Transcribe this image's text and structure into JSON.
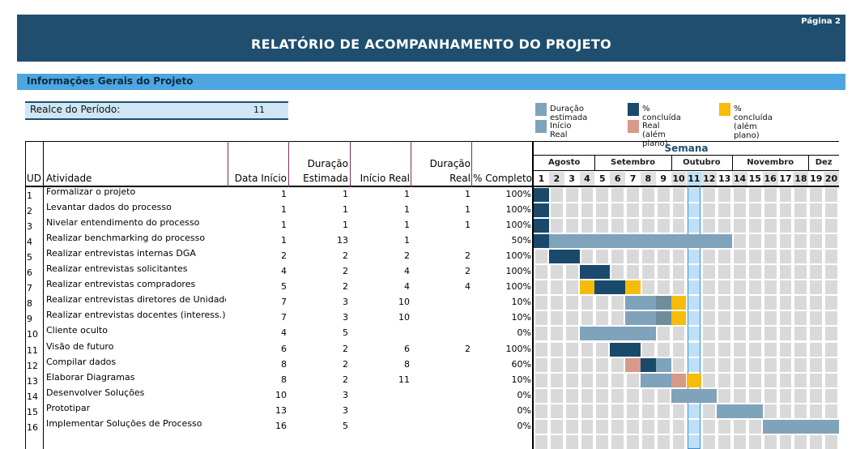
{
  "header": {
    "page_label": "Página 2",
    "title": "RELATÓRIO DE ACOMPANHAMENTO DO PROJETO"
  },
  "info": {
    "title": "Informações Gerais do Projeto"
  },
  "period": {
    "label": "Realce do Período:",
    "value": "11"
  },
  "legend": [
    {
      "name": "estimated",
      "label": "Duração estimada",
      "color": "#7fa3ba"
    },
    {
      "name": "complete",
      "label": "% concluída",
      "color": "#1a4a6b"
    },
    {
      "name": "complete-beyond",
      "label": "% concluída (além plano)",
      "color": "#f5bc0a"
    },
    {
      "name": "actual-start",
      "label": "Início Real",
      "color": "#7fa3ba"
    },
    {
      "name": "actual-beyond",
      "label": "Real (além plano)",
      "color": "#d6998a"
    }
  ],
  "columns": {
    "ud": "UD",
    "activity": "Atividade",
    "start": "Data Início",
    "duration_est_1": "Duração",
    "duration_est_2": "Estimada",
    "real_start": "Início Real",
    "duration_real_1": "Duração",
    "duration_real_2": "Real",
    "percent": "% Completo",
    "week_group": "Semana"
  },
  "months": [
    {
      "label": "Agosto",
      "from": 1,
      "to": 4
    },
    {
      "label": "Setembro",
      "from": 5,
      "to": 9
    },
    {
      "label": "Outubro",
      "from": 10,
      "to": 13
    },
    {
      "label": "Novembro",
      "from": 14,
      "to": 18
    },
    {
      "label": "Dez",
      "from": 19,
      "to": 20
    }
  ],
  "weeks": [
    "1",
    "2",
    "3",
    "4",
    "5",
    "6",
    "7",
    "8",
    "9",
    "10",
    "11",
    "12",
    "13",
    "14",
    "15",
    "16",
    "17",
    "18",
    "19",
    "20"
  ],
  "highlight_week": 11,
  "colors": {
    "est": "#7fa3ba",
    "done": "#1a4a6b",
    "beyond": "#f5bc0a",
    "real_beyond": "#d6998a",
    "cell": "#d9d9d9",
    "highlight": "#bde0f6"
  },
  "rows": [
    {
      "ud": "1",
      "activity": "Formalizar o projeto",
      "start": "1",
      "dur_est": "1",
      "real_start": "1",
      "dur_real": "1",
      "percent": "100%",
      "bars": [
        {
          "from": 1,
          "to": 1,
          "kind": "done"
        }
      ]
    },
    {
      "ud": "2",
      "activity": "Levantar dados do processo",
      "start": "1",
      "dur_est": "1",
      "real_start": "1",
      "dur_real": "1",
      "percent": "100%",
      "bars": [
        {
          "from": 1,
          "to": 1,
          "kind": "done"
        }
      ]
    },
    {
      "ud": "3",
      "activity": "Nivelar entendimento do processo",
      "start": "1",
      "dur_est": "1",
      "real_start": "1",
      "dur_real": "1",
      "percent": "100%",
      "bars": [
        {
          "from": 1,
          "to": 1,
          "kind": "done"
        }
      ]
    },
    {
      "ud": "4",
      "activity": "Realizar benchmarking do processo",
      "start": "1",
      "dur_est": "13",
      "real_start": "1",
      "dur_real": "",
      "percent": "50%",
      "bars": [
        {
          "from": 1,
          "to": 13,
          "kind": "est"
        },
        {
          "from": 1,
          "to": 1,
          "kind": "done"
        }
      ]
    },
    {
      "ud": "5",
      "activity": "Realizar entrevistas internas DGA",
      "start": "2",
      "dur_est": "2",
      "real_start": "2",
      "dur_real": "2",
      "percent": "100%",
      "bars": [
        {
          "from": 2,
          "to": 3,
          "kind": "done"
        }
      ]
    },
    {
      "ud": "6",
      "activity": "Realizar entrevistas solicitantes",
      "start": "4",
      "dur_est": "2",
      "real_start": "4",
      "dur_real": "2",
      "percent": "100%",
      "bars": [
        {
          "from": 4,
          "to": 5,
          "kind": "done"
        }
      ]
    },
    {
      "ud": "7",
      "activity": "Realizar entrevistas compradores",
      "start": "5",
      "dur_est": "2",
      "real_start": "4",
      "dur_real": "4",
      "percent": "100%",
      "bars": [
        {
          "from": 4,
          "to": 4,
          "kind": "beyond"
        },
        {
          "from": 5,
          "to": 6,
          "kind": "done"
        },
        {
          "from": 7,
          "to": 7,
          "kind": "beyond"
        }
      ]
    },
    {
      "ud": "8",
      "activity": "Realizar entrevistas diretores de Unidade",
      "start": "7",
      "dur_est": "3",
      "real_start": "10",
      "dur_real": "",
      "percent": "10%",
      "bars": [
        {
          "from": 7,
          "to": 9,
          "kind": "est"
        },
        {
          "from": 9,
          "to": 9,
          "kind": "mid"
        },
        {
          "from": 10,
          "to": 10,
          "kind": "beyond"
        }
      ]
    },
    {
      "ud": "9",
      "activity": "Realizar entrevistas docentes (interess.)",
      "start": "7",
      "dur_est": "3",
      "real_start": "10",
      "dur_real": "",
      "percent": "10%",
      "bars": [
        {
          "from": 7,
          "to": 9,
          "kind": "est"
        },
        {
          "from": 9,
          "to": 9,
          "kind": "mid"
        },
        {
          "from": 10,
          "to": 10,
          "kind": "beyond"
        }
      ]
    },
    {
      "ud": "10",
      "activity": "Cliente oculto",
      "start": "4",
      "dur_est": "5",
      "real_start": "",
      "dur_real": "",
      "percent": "0%",
      "bars": [
        {
          "from": 4,
          "to": 8,
          "kind": "est"
        }
      ]
    },
    {
      "ud": "11",
      "activity": "Visão de futuro",
      "start": "6",
      "dur_est": "2",
      "real_start": "6",
      "dur_real": "2",
      "percent": "100%",
      "bars": [
        {
          "from": 6,
          "to": 7,
          "kind": "done"
        }
      ]
    },
    {
      "ud": "12",
      "activity": "Compilar dados",
      "start": "8",
      "dur_est": "2",
      "real_start": "8",
      "dur_real": "",
      "percent": "60%",
      "bars": [
        {
          "from": 7,
          "to": 7,
          "kind": "real_beyond"
        },
        {
          "from": 8,
          "to": 8,
          "kind": "done"
        },
        {
          "from": 9,
          "to": 9,
          "kind": "est"
        }
      ]
    },
    {
      "ud": "13",
      "activity": "Elaborar Diagramas",
      "start": "8",
      "dur_est": "2",
      "real_start": "11",
      "dur_real": "",
      "percent": "10%",
      "bars": [
        {
          "from": 8,
          "to": 9,
          "kind": "est"
        },
        {
          "from": 10,
          "to": 10,
          "kind": "real_beyond"
        },
        {
          "from": 11,
          "to": 11,
          "kind": "beyond"
        }
      ]
    },
    {
      "ud": "14",
      "activity": "Desenvolver Soluções",
      "start": "10",
      "dur_est": "3",
      "real_start": "",
      "dur_real": "",
      "percent": "0%",
      "bars": [
        {
          "from": 10,
          "to": 12,
          "kind": "est"
        }
      ]
    },
    {
      "ud": "15",
      "activity": "Prototipar",
      "start": "13",
      "dur_est": "3",
      "real_start": "",
      "dur_real": "",
      "percent": "0%",
      "bars": [
        {
          "from": 13,
          "to": 15,
          "kind": "est"
        }
      ]
    },
    {
      "ud": "16",
      "activity": "Implementar Soluções de Processo",
      "start": "16",
      "dur_est": "5",
      "real_start": "",
      "dur_real": "",
      "percent": "0%",
      "bars": [
        {
          "from": 16,
          "to": 20,
          "kind": "est"
        }
      ]
    }
  ]
}
